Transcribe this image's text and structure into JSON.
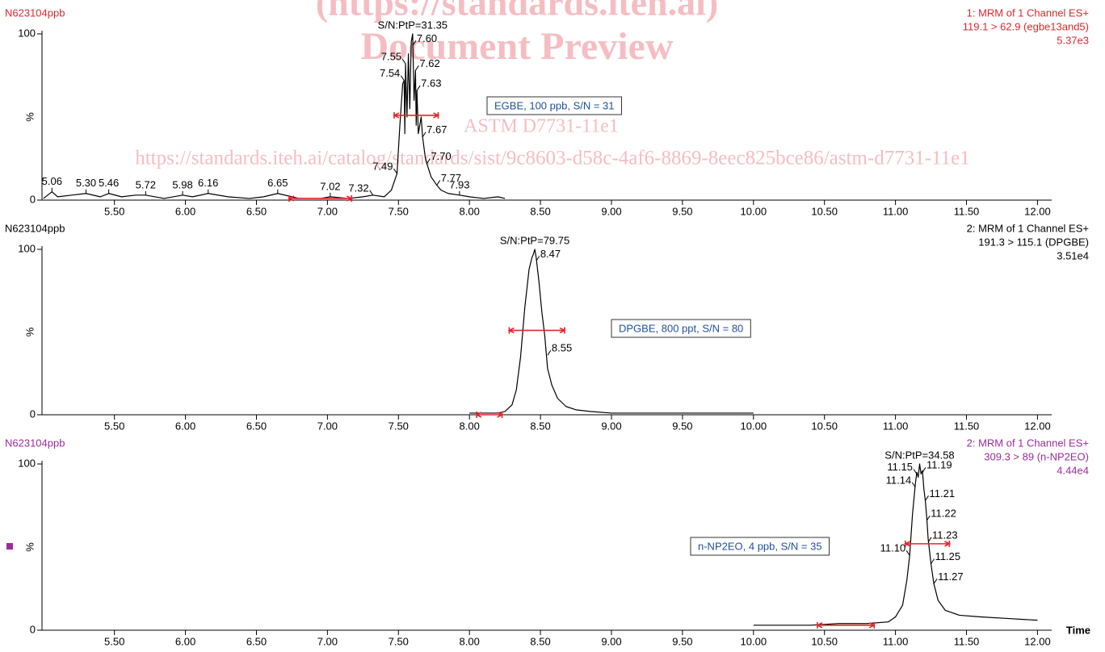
{
  "watermark": [
    "(https://standards.iteh.ai)",
    "Document Preview",
    "ASTM D7731-11e1",
    "https://standards.iteh.ai/catalog/standards/sist/9c8603-d58c-4af6-8869-8eec825bce86/astm-d7731-11e1"
  ],
  "chart_data": [
    {
      "type": "line",
      "title": "N623104ppb",
      "title_color": "#e3262c",
      "info": [
        "1: MRM of 1 Channel ES+",
        "119.1 > 62.9 (egbe13and5)",
        "5.37e3"
      ],
      "ylabel": "%",
      "xlim": [
        4.99,
        12.1
      ],
      "ylim": [
        0,
        100
      ],
      "xticks": [
        {
          "value": 5.5,
          "label": "5.50"
        },
        {
          "value": 6,
          "label": "6.00"
        },
        {
          "value": 6.5,
          "label": "6.50"
        },
        {
          "value": 7,
          "label": "7.00"
        },
        {
          "value": 7.5,
          "label": "7.50"
        },
        {
          "value": 8,
          "label": "8.00"
        },
        {
          "value": 8.5,
          "label": "8.50"
        },
        {
          "value": 9,
          "label": "9.00"
        },
        {
          "value": 9.5,
          "label": "9.50"
        },
        {
          "value": 10,
          "label": "10.00"
        },
        {
          "value": 10.5,
          "label": "10.50"
        },
        {
          "value": 11,
          "label": "11.00"
        },
        {
          "value": 11.5,
          "label": "11.50"
        },
        {
          "value": 12,
          "label": "12.00"
        }
      ],
      "yticks": [
        0,
        100
      ],
      "x": [
        5.0,
        5.06,
        5.1,
        5.2,
        5.3,
        5.4,
        5.46,
        5.55,
        5.65,
        5.72,
        5.85,
        5.98,
        6.05,
        6.16,
        6.3,
        6.45,
        6.55,
        6.65,
        6.8,
        6.95,
        7.02,
        7.15,
        7.25,
        7.32,
        7.4,
        7.45,
        7.49,
        7.51,
        7.53,
        7.54,
        7.545,
        7.55,
        7.56,
        7.57,
        7.58,
        7.59,
        7.6,
        7.61,
        7.62,
        7.625,
        7.63,
        7.64,
        7.66,
        7.67,
        7.69,
        7.7,
        7.73,
        7.77,
        7.8,
        7.85,
        7.93,
        8.0,
        8.1,
        8.2,
        8.25
      ],
      "series": [
        {
          "color": "#000000",
          "values": [
            1,
            5,
            2,
            3,
            4,
            2,
            4,
            2,
            3,
            3,
            1,
            3,
            2,
            4,
            2,
            1,
            2,
            4,
            1,
            1,
            2,
            1,
            2,
            3,
            2,
            6,
            16,
            45,
            70,
            72,
            40,
            82,
            50,
            88,
            55,
            95,
            100,
            60,
            78,
            45,
            66,
            40,
            50,
            38,
            25,
            22,
            14,
            9,
            6,
            4,
            3,
            2,
            1,
            2,
            1
          ]
        }
      ],
      "peak_labels": [
        {
          "value": 5.06,
          "label": "5.06",
          "y": 5
        },
        {
          "value": 5.3,
          "label": "5.30",
          "y": 4
        },
        {
          "value": 5.46,
          "label": "5.46",
          "y": 4
        },
        {
          "value": 5.72,
          "label": "5.72",
          "y": 3
        },
        {
          "value": 5.98,
          "label": "5.98",
          "y": 3
        },
        {
          "value": 6.16,
          "label": "6.16",
          "y": 4
        },
        {
          "value": 6.65,
          "label": "6.65",
          "y": 4
        },
        {
          "value": 7.02,
          "label": "7.02",
          "y": 2
        },
        {
          "value": 7.32,
          "label": "7.32",
          "y": 3
        },
        {
          "value": 7.49,
          "label": "7.49",
          "y": 16
        },
        {
          "value": 7.54,
          "label": "7.54",
          "y": 72
        },
        {
          "value": 7.55,
          "label": "7.55",
          "y": 82
        },
        {
          "value": 7.6,
          "label": "7.60",
          "y": 93
        },
        {
          "value": 7.62,
          "label": "7.62",
          "y": 78
        },
        {
          "value": 7.63,
          "label": "7.63",
          "y": 66
        },
        {
          "value": 7.67,
          "label": "7.67",
          "y": 38
        },
        {
          "value": 7.7,
          "label": "7.70",
          "y": 22
        },
        {
          "value": 7.77,
          "label": "7.77",
          "y": 9
        },
        {
          "value": 7.93,
          "label": "7.93",
          "y": 3
        }
      ],
      "sn_label": "S/N:PtP=31.35",
      "box_label": "EGBE, 100 ppb, S/N = 31",
      "markers": [
        {
          "x": [
            6.73,
            7.17
          ],
          "y": 1
        },
        {
          "x": [
            7.47,
            7.78
          ],
          "y": 51
        }
      ]
    },
    {
      "type": "line",
      "title": "N623104ppb",
      "title_color": "#000000",
      "info": [
        "2: MRM of 1 Channel ES+",
        "191.3 > 115.1 (DPGBE)",
        "3.51e4"
      ],
      "ylabel": "%",
      "xlim": [
        4.99,
        12.1
      ],
      "ylim": [
        0,
        100
      ],
      "xticks": [
        {
          "value": 5.5,
          "label": "5.50"
        },
        {
          "value": 6,
          "label": "6.00"
        },
        {
          "value": 6.5,
          "label": "6.50"
        },
        {
          "value": 7,
          "label": "7.00"
        },
        {
          "value": 7.5,
          "label": "7.50"
        },
        {
          "value": 8,
          "label": "8.00"
        },
        {
          "value": 8.5,
          "label": "8.50"
        },
        {
          "value": 9,
          "label": "9.00"
        },
        {
          "value": 9.5,
          "label": "9.50"
        },
        {
          "value": 10,
          "label": "10.00"
        },
        {
          "value": 10.5,
          "label": "10.50"
        },
        {
          "value": 11,
          "label": "11.00"
        },
        {
          "value": 11.5,
          "label": "11.50"
        },
        {
          "value": 12,
          "label": "12.00"
        }
      ],
      "yticks": [
        0,
        100
      ],
      "x": [
        8.0,
        8.1,
        8.2,
        8.25,
        8.3,
        8.33,
        8.36,
        8.39,
        8.42,
        8.44,
        8.45,
        8.46,
        8.47,
        8.49,
        8.51,
        8.53,
        8.55,
        8.58,
        8.62,
        8.68,
        8.75,
        8.85,
        9.0,
        9.25,
        9.5,
        9.75,
        10.0
      ],
      "series": [
        {
          "color": "#000000",
          "values": [
            1,
            1,
            1,
            2,
            6,
            15,
            35,
            65,
            88,
            95,
            97,
            100,
            95,
            80,
            62,
            48,
            28,
            18,
            10,
            5,
            3,
            2,
            1,
            1,
            1,
            1,
            1
          ]
        }
      ],
      "peak_labels": [
        {
          "value": 8.47,
          "label": "8.47",
          "y": 93
        },
        {
          "value": 8.55,
          "label": "8.55",
          "y": 36
        }
      ],
      "sn_label": "S/N:PtP=79.75",
      "box_label": "DPGBE, 800 ppt, S/N = 80",
      "markers": [
        {
          "x": [
            8.05,
            8.23
          ],
          "y": 0
        },
        {
          "x": [
            8.28,
            8.67
          ],
          "y": 51
        }
      ]
    },
    {
      "type": "line",
      "title": "N623104ppb",
      "title_color": "#9b2d9b",
      "info": [
        "2: MRM of 1 Channel ES+",
        "309.3 > 89 (n-NP2EO)",
        "4.44e4"
      ],
      "ylabel": "%",
      "xlabel": "Time",
      "xlim": [
        4.99,
        12.1
      ],
      "ylim": [
        0,
        100
      ],
      "xticks": [
        {
          "value": 5.5,
          "label": "5.50"
        },
        {
          "value": 6,
          "label": "6.00"
        },
        {
          "value": 6.5,
          "label": "6.50"
        },
        {
          "value": 7,
          "label": "7.00"
        },
        {
          "value": 7.5,
          "label": "7.50"
        },
        {
          "value": 8,
          "label": "8.00"
        },
        {
          "value": 8.5,
          "label": "8.50"
        },
        {
          "value": 9,
          "label": "9.00"
        },
        {
          "value": 9.5,
          "label": "9.50"
        },
        {
          "value": 10,
          "label": "10.00"
        },
        {
          "value": 10.5,
          "label": "10.50"
        },
        {
          "value": 11,
          "label": "11.00"
        },
        {
          "value": 11.5,
          "label": "11.50"
        },
        {
          "value": 12,
          "label": "12.00"
        }
      ],
      "yticks": [
        0,
        100
      ],
      "x": [
        10.0,
        10.2,
        10.4,
        10.6,
        10.8,
        10.95,
        11.0,
        11.05,
        11.08,
        11.1,
        11.12,
        11.14,
        11.15,
        11.16,
        11.17,
        11.18,
        11.19,
        11.2,
        11.21,
        11.22,
        11.23,
        11.25,
        11.27,
        11.3,
        11.35,
        11.45,
        11.6,
        11.8,
        12.0
      ],
      "series": [
        {
          "color": "#000000",
          "values": [
            3,
            3,
            3,
            4,
            4,
            5,
            8,
            15,
            30,
            45,
            70,
            88,
            95,
            92,
            100,
            94,
            96,
            85,
            78,
            68,
            55,
            40,
            28,
            18,
            12,
            9,
            8,
            7,
            6
          ]
        }
      ],
      "peak_labels": [
        {
          "value": 11.1,
          "label": "11.10",
          "y": 45
        },
        {
          "value": 11.14,
          "label": "11.14",
          "y": 86
        },
        {
          "value": 11.15,
          "label": "11.15",
          "y": 94
        },
        {
          "value": 11.19,
          "label": "11.19",
          "y": 95
        },
        {
          "value": 11.21,
          "label": "11.21",
          "y": 78
        },
        {
          "value": 11.22,
          "label": "11.22",
          "y": 66
        },
        {
          "value": 11.23,
          "label": "11.23",
          "y": 53
        },
        {
          "value": 11.25,
          "label": "11.25",
          "y": 40
        },
        {
          "value": 11.27,
          "label": "11.27",
          "y": 28
        }
      ],
      "sn_label": "S/N:PtP=34.58",
      "box_label": "n-NP2EO, 4 ppb, S/N = 35",
      "markers": [
        {
          "x": [
            10.45,
            10.85
          ],
          "y": 3
        },
        {
          "x": [
            11.07,
            11.38
          ],
          "y": 52
        }
      ]
    }
  ]
}
